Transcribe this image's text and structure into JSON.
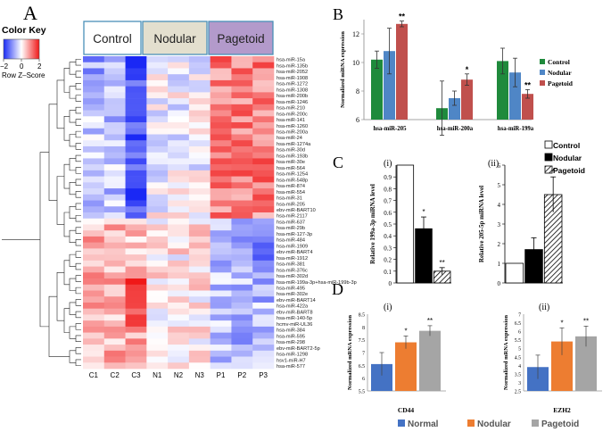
{
  "panelA": {
    "label": "A",
    "color_key_title": "Color Key",
    "color_key_ticks": [
      "−2",
      "0",
      "2"
    ],
    "color_key_axis": "Row Z–Score",
    "groups": [
      {
        "label": "Control",
        "color": "#ffffff"
      },
      {
        "label": "Nodular",
        "color": "#e3dfce"
      },
      {
        "label": "Pagetoid",
        "color": "#b39acb"
      }
    ],
    "columns": [
      "C1",
      "C2",
      "C3",
      "N1",
      "N2",
      "N3",
      "P1",
      "P2",
      "P3"
    ],
    "rows": [
      "hsa-miR-15a",
      "hsa-miR-135b",
      "hsa-miR-2052",
      "hsa-miR-1908",
      "hsa-miR-1272",
      "hsa-miR-1308",
      "hsa-miR-200b",
      "hsa-miR-1246",
      "hsa-miR-210",
      "hsa-miR-200c",
      "hsa-miR-141",
      "hsa-miR-1260",
      "hsa-miR-200a",
      "hsa-miR-24",
      "hsa-miR-1274a",
      "hsa-miR-30d",
      "hsa-miR-193b",
      "hsa-miR-30e",
      "hsa-miR-564",
      "hsa-miR-1254",
      "hsa-miR-548p",
      "hsa-miR-874",
      "hsa-miR-554",
      "hsa-miR-31",
      "hsa-miR-205",
      "ebv-miR-BART10",
      "hsa-miR-2117",
      "hsa-miR-637",
      "hsa-miR-29b",
      "hsa-miR-127-3p",
      "hsa-miR-484",
      "hsa-miR-1909",
      "ebv-miR-BART4",
      "hsa-miR-1912",
      "hsa-miR-381",
      "hsa-miR-376c",
      "hsa-miR-302d",
      "hsa-miR-199a-3p+hsa-miR-199b-3p",
      "hsa-miR-495",
      "hsa-miR-302e",
      "ebv-miR-BART14",
      "hsa-miR-422a",
      "ebv-miR-BART8",
      "hsa-miR-140-5p",
      "hcmv-miR-UL36",
      "hsa-miR-384",
      "hsa-miR-595",
      "hsa-miR-298",
      "ebv-miR-BART2-5p",
      "hsa-miR-1298",
      "hsv1-miR-H7",
      "hsa-miR-577"
    ]
  },
  "panelB": {
    "label": "B",
    "chart_data": {
      "type": "bar",
      "ylabel": "Normalized miRNA expression",
      "ylim": [
        6,
        13
      ],
      "yticks": [
        "6",
        "8",
        "10",
        "12"
      ],
      "categories": [
        "hsa-miR-205",
        "hsa-miR-200a",
        "hsa-miR-199a"
      ],
      "series": [
        {
          "name": "Control",
          "color": "#1f8a3c",
          "values": [
            10.2,
            6.8,
            10.1
          ],
          "errors": [
            0.6,
            1.9,
            0.9
          ]
        },
        {
          "name": "Nodular",
          "color": "#4f86c6",
          "values": [
            10.8,
            7.5,
            9.3
          ],
          "errors": [
            1.6,
            0.5,
            1.0
          ]
        },
        {
          "name": "Pagetoid",
          "color": "#c0504d",
          "values": [
            12.7,
            8.8,
            7.8
          ],
          "errors": [
            0.2,
            0.4,
            0.3
          ]
        }
      ],
      "significance": [
        [
          "",
          "",
          "**"
        ],
        [
          "",
          "",
          "*"
        ],
        [
          "",
          "",
          "**"
        ]
      ],
      "legend": [
        "Control",
        "Nodular",
        "Pagetoid"
      ]
    }
  },
  "panelC": {
    "label": "C",
    "legend": [
      "Control",
      "Nodular",
      "Pagetoid"
    ],
    "charts": [
      {
        "sublabel": "(i)",
        "type": "bar",
        "ylabel": "Relative 199a-3p miRNA level",
        "ylim": [
          0,
          1
        ],
        "yticks": [
          "0",
          "0.1",
          "0.2",
          "0.3",
          "0.4",
          "0.5",
          "0.6",
          "0.7",
          "0.8",
          "0.9"
        ],
        "values": [
          1.0,
          0.46,
          0.1
        ],
        "errors": [
          0,
          0.1,
          0.03
        ],
        "significance": [
          "",
          "*",
          "**"
        ]
      },
      {
        "sublabel": "(ii)",
        "type": "bar",
        "ylabel": "Relative 205-5p miRNA level",
        "ylim": [
          0,
          6
        ],
        "yticks": [
          "0",
          "1",
          "2",
          "3",
          "4",
          "5",
          "6"
        ],
        "values": [
          1.0,
          1.7,
          4.5
        ],
        "errors": [
          0,
          0.6,
          0.9
        ],
        "significance": [
          "",
          "",
          "*"
        ]
      }
    ]
  },
  "panelD": {
    "label": "D",
    "legend": [
      {
        "name": "Normal",
        "color": "#4472c4"
      },
      {
        "name": "Nodular",
        "color": "#ed7d31"
      },
      {
        "name": "Pagetoid",
        "color": "#a5a5a5"
      }
    ],
    "charts": [
      {
        "sublabel": "(i)",
        "gene": "CD44",
        "ylabel": "Normalized mRNA expression",
        "ylim": [
          5.5,
          8.5
        ],
        "yticks": [
          "5.5",
          "6",
          "6.5",
          "7",
          "7.5",
          "8",
          "8.5"
        ],
        "values": [
          6.55,
          7.4,
          7.85
        ],
        "errors": [
          0.45,
          0.25,
          0.2
        ],
        "significance": [
          "",
          "*",
          "**"
        ]
      },
      {
        "sublabel": "(ii)",
        "gene": "EZH2",
        "ylabel": "Normalized mRNA expression",
        "ylim": [
          2.5,
          7
        ],
        "yticks": [
          "2.5",
          "3",
          "3.5",
          "4",
          "4.5",
          "5",
          "5.5",
          "6",
          "6.5",
          "7"
        ],
        "values": [
          3.9,
          5.4,
          5.7
        ],
        "errors": [
          0.7,
          0.8,
          0.6
        ],
        "significance": [
          "",
          "*",
          "**"
        ]
      }
    ]
  }
}
